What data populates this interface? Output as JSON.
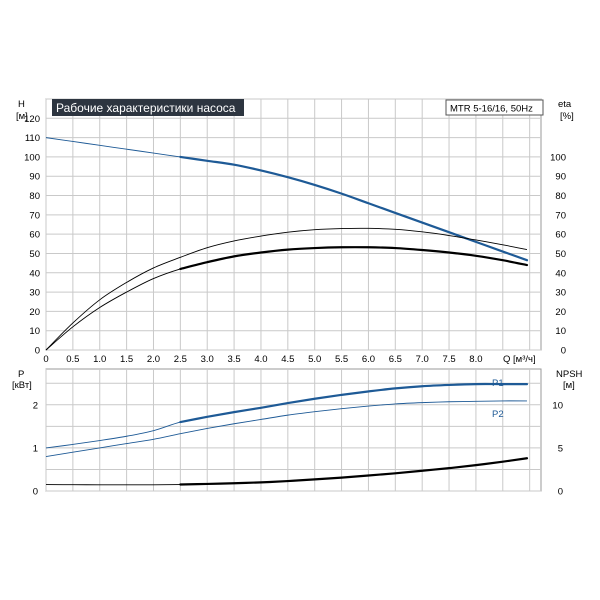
{
  "header": {
    "title": "Рабочие характеристики насоса",
    "model": "MTR 5-16/16, 50Hz"
  },
  "colors": {
    "grid": "#c9c9c9",
    "frame": "#9a9a9a",
    "blue": "#1e5a96",
    "black": "#000000",
    "title_bg": "#2d3540",
    "title_fg": "#ffffff"
  },
  "axes": {
    "top_left": {
      "label": "H",
      "unit": "[м]",
      "ticks": [
        0,
        10,
        20,
        30,
        40,
        50,
        60,
        70,
        80,
        90,
        100,
        110,
        120
      ]
    },
    "top_right": {
      "label": "eta",
      "unit": "[%]",
      "ticks": [
        0,
        10,
        20,
        30,
        40,
        50,
        60,
        70,
        80,
        90,
        100
      ]
    },
    "x": {
      "label": "Q [м³/ч]",
      "ticks": [
        "0",
        "0.5",
        "1.0",
        "1.5",
        "2.0",
        "2.5",
        "3.0",
        "3.5",
        "4.0",
        "4.5",
        "5.0",
        "5.5",
        "6.0",
        "6.5",
        "7.0",
        "7.5",
        "8.0"
      ]
    },
    "bottom_left": {
      "label": "P",
      "unit": "[кВт]",
      "ticks": [
        0,
        1,
        2
      ]
    },
    "bottom_right": {
      "label": "NPSH",
      "unit": "[м]",
      "ticks": [
        0,
        5,
        10
      ]
    }
  },
  "chart_data": [
    {
      "type": "line",
      "title": "Рабочие характеристики насоса",
      "subtitle": "MTR 5-16/16, 50Hz",
      "xlabel": "Q [м³/ч]",
      "ylabel": "H [м]",
      "ylabel_right": "eta [%]",
      "xlim": [
        0,
        9.25
      ],
      "ylim": [
        0,
        130
      ],
      "ylim_right": [
        0,
        130
      ],
      "grid": true,
      "series": [
        {
          "axis": "left",
          "color": "#1e5a96",
          "x": [
            0,
            0.5,
            1.0,
            1.5,
            2.0,
            2.5,
            3.0,
            3.5,
            4.0,
            4.5,
            5.0,
            5.5,
            6.0,
            6.5,
            7.0,
            7.5,
            8.0,
            8.5,
            8.95
          ],
          "y": [
            110,
            108,
            106,
            104,
            102,
            100,
            98,
            96,
            93,
            89.5,
            85.5,
            81,
            76,
            71,
            66,
            61,
            56,
            51,
            46.5
          ],
          "bold_from_x": 2.5
        },
        {
          "axis": "right",
          "color": "#000000",
          "x": [
            0,
            0.5,
            1.0,
            1.5,
            2.0,
            2.5,
            3.0,
            3.5,
            4.0,
            4.5,
            5.0,
            5.5,
            6.0,
            6.5,
            7.0,
            7.5,
            8.0,
            8.5,
            8.95
          ],
          "y": [
            0,
            12,
            22,
            30,
            37,
            42,
            45.5,
            48.5,
            50.5,
            52,
            52.8,
            53.2,
            53.2,
            52.8,
            51.8,
            50.5,
            48.8,
            46.5,
            44
          ],
          "bold_from_x": 2.5
        },
        {
          "axis": "right",
          "color": "#000000",
          "x": [
            0,
            0.5,
            1.0,
            1.5,
            2.0,
            2.5,
            3.0,
            3.5,
            4.0,
            4.5,
            5.0,
            5.5,
            6.0,
            6.5,
            7.0,
            7.5,
            8.0,
            8.5,
            8.95
          ],
          "y": [
            0,
            14,
            26,
            35,
            42.5,
            48,
            53,
            56.5,
            59,
            61,
            62.3,
            62.9,
            63,
            62.5,
            61.2,
            59.3,
            57,
            54.5,
            52
          ],
          "bold_from_x": 99
        }
      ]
    },
    {
      "type": "line",
      "xlabel": "Q [м³/ч]",
      "ylabel": "P [кВт]",
      "ylabel_right": "NPSH [м]",
      "xlim": [
        0,
        9.25
      ],
      "ylim": [
        0,
        2.83
      ],
      "ylim_right": [
        0,
        14.15
      ],
      "grid": true,
      "series": [
        {
          "name": "P1",
          "axis": "left",
          "color": "#1e5a96",
          "x": [
            0,
            0.5,
            1.0,
            1.5,
            2.0,
            2.5,
            3.0,
            3.5,
            4.0,
            4.5,
            5.0,
            5.5,
            6.0,
            6.5,
            7.0,
            7.5,
            8.0,
            8.5,
            8.95
          ],
          "y": [
            1.0,
            1.08,
            1.17,
            1.27,
            1.4,
            1.6,
            1.72,
            1.83,
            1.93,
            2.04,
            2.14,
            2.23,
            2.31,
            2.38,
            2.43,
            2.46,
            2.48,
            2.48,
            2.48
          ],
          "bold_from_x": 2.5
        },
        {
          "name": "P2",
          "axis": "left",
          "color": "#1e5a96",
          "x": [
            0,
            0.5,
            1.0,
            1.5,
            2.0,
            2.5,
            3.0,
            3.5,
            4.0,
            4.5,
            5.0,
            5.5,
            6.0,
            6.5,
            7.0,
            7.5,
            8.0,
            8.5,
            8.95
          ],
          "y": [
            0.8,
            0.9,
            1.0,
            1.1,
            1.2,
            1.33,
            1.45,
            1.56,
            1.66,
            1.76,
            1.84,
            1.91,
            1.97,
            2.02,
            2.05,
            2.07,
            2.08,
            2.09,
            2.09
          ],
          "bold_from_x": 99
        },
        {
          "name": "NPSH",
          "axis": "right",
          "color": "#000000",
          "x": [
            0,
            0.5,
            1.0,
            1.5,
            2.0,
            2.5,
            3.0,
            3.5,
            4.0,
            4.5,
            5.0,
            5.5,
            6.0,
            6.5,
            7.0,
            7.5,
            8.0,
            8.5,
            8.95
          ],
          "y": [
            0.75,
            0.73,
            0.72,
            0.72,
            0.72,
            0.75,
            0.82,
            0.9,
            1.0,
            1.15,
            1.35,
            1.55,
            1.8,
            2.05,
            2.35,
            2.65,
            3.0,
            3.4,
            3.8
          ],
          "bold_from_x": 2.5
        }
      ]
    }
  ]
}
